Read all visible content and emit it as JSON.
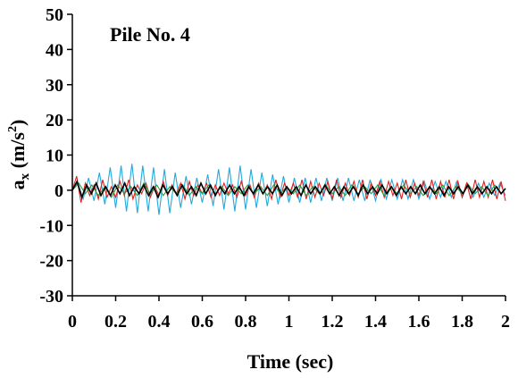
{
  "chart_data": {
    "type": "line",
    "annotation": "Pile No. 4",
    "xlabel": "Time (sec)",
    "ylabel_main": "a",
    "ylabel_sub": "x",
    "ylabel_unit_pre": " (m/s",
    "ylabel_unit_sup": "2",
    "ylabel_unit_post": ")",
    "xlim": [
      0,
      2
    ],
    "ylim": [
      -30,
      50
    ],
    "x_ticks": [
      "0",
      "0.2",
      "0.4",
      "0.6",
      "0.8",
      "1",
      "1.2",
      "1.4",
      "1.6",
      "1.8",
      "2"
    ],
    "y_ticks": [
      "50",
      "40",
      "30",
      "20",
      "10",
      "0",
      "-10",
      "-20",
      "-30"
    ],
    "grid": false,
    "legend": "none",
    "series": [
      {
        "color": "#22aadd",
        "x": [
          0.0,
          0.025,
          0.05,
          0.075,
          0.1,
          0.125,
          0.15,
          0.175,
          0.2,
          0.225,
          0.25,
          0.275,
          0.3,
          0.325,
          0.35,
          0.375,
          0.4,
          0.425,
          0.45,
          0.475,
          0.5,
          0.525,
          0.55,
          0.575,
          0.6,
          0.625,
          0.65,
          0.675,
          0.7,
          0.725,
          0.75,
          0.775,
          0.8,
          0.825,
          0.85,
          0.875,
          0.9,
          0.925,
          0.95,
          0.975,
          1.0,
          1.025,
          1.05,
          1.075,
          1.1,
          1.125,
          1.15,
          1.175,
          1.2,
          1.225,
          1.25,
          1.275,
          1.3,
          1.325,
          1.35,
          1.375,
          1.4,
          1.425,
          1.45,
          1.475,
          1.5,
          1.525,
          1.55,
          1.575,
          1.6,
          1.625,
          1.65,
          1.675,
          1.7,
          1.725,
          1.75,
          1.775,
          1.8,
          1.825,
          1.85,
          1.875,
          1.9,
          1.925,
          1.95,
          1.975,
          2.0
        ],
        "y": [
          0.5,
          2.0,
          -2.5,
          3.5,
          -3.0,
          5.0,
          -4.0,
          6.5,
          -5.0,
          7.0,
          -6.0,
          7.5,
          -6.5,
          7.0,
          -6.0,
          6.5,
          -7.0,
          6.0,
          -6.5,
          5.0,
          -5.0,
          4.0,
          -4.0,
          3.5,
          -3.5,
          4.5,
          -4.5,
          6.0,
          -5.5,
          6.5,
          -6.0,
          7.0,
          -5.5,
          6.0,
          -5.0,
          5.0,
          -4.5,
          4.5,
          -4.0,
          4.0,
          -3.5,
          3.5,
          -3.5,
          3.5,
          -3.5,
          3.5,
          -3.0,
          3.5,
          -3.0,
          3.5,
          -3.0,
          3.5,
          -3.0,
          3.0,
          -3.0,
          3.0,
          -3.0,
          3.0,
          -2.5,
          3.0,
          -2.5,
          3.0,
          -2.5,
          3.0,
          -2.5,
          2.5,
          -2.5,
          2.5,
          -2.0,
          2.5,
          -2.0,
          2.5,
          -2.0,
          2.0,
          -2.0,
          2.0,
          -2.0,
          2.0,
          -1.5,
          2.0,
          -1.5
        ]
      },
      {
        "color": "#e02020",
        "x": [
          0.0,
          0.02,
          0.04,
          0.06,
          0.08,
          0.1,
          0.12,
          0.14,
          0.16,
          0.18,
          0.2,
          0.22,
          0.24,
          0.26,
          0.28,
          0.3,
          0.32,
          0.34,
          0.36,
          0.38,
          0.4,
          0.42,
          0.44,
          0.46,
          0.48,
          0.5,
          0.52,
          0.54,
          0.56,
          0.58,
          0.6,
          0.62,
          0.64,
          0.66,
          0.68,
          0.7,
          0.72,
          0.74,
          0.76,
          0.78,
          0.8,
          0.82,
          0.84,
          0.86,
          0.88,
          0.9,
          0.92,
          0.94,
          0.96,
          0.98,
          1.0,
          1.02,
          1.04,
          1.06,
          1.08,
          1.1,
          1.12,
          1.14,
          1.16,
          1.18,
          1.2,
          1.22,
          1.24,
          1.26,
          1.28,
          1.3,
          1.32,
          1.34,
          1.36,
          1.38,
          1.4,
          1.42,
          1.44,
          1.46,
          1.48,
          1.5,
          1.52,
          1.54,
          1.56,
          1.58,
          1.6,
          1.62,
          1.64,
          1.66,
          1.68,
          1.7,
          1.72,
          1.74,
          1.76,
          1.78,
          1.8,
          1.82,
          1.84,
          1.86,
          1.88,
          1.9,
          1.92,
          1.94,
          1.96,
          1.98,
          2.0
        ],
        "y": [
          0.0,
          4.0,
          -3.5,
          2.0,
          -1.5,
          1.5,
          -2.5,
          3.0,
          -2.0,
          1.0,
          -2.0,
          2.5,
          -1.5,
          3.0,
          -2.5,
          1.5,
          -1.0,
          2.0,
          -2.0,
          1.0,
          -1.5,
          2.5,
          -1.5,
          1.5,
          -1.0,
          2.0,
          -2.5,
          2.5,
          -1.5,
          1.5,
          -1.0,
          2.0,
          -2.0,
          1.5,
          -1.5,
          2.0,
          -1.0,
          1.5,
          -2.0,
          2.5,
          -1.5,
          1.5,
          -2.0,
          2.0,
          -1.0,
          1.5,
          -2.5,
          3.0,
          -2.0,
          2.0,
          -1.5,
          2.0,
          -2.0,
          3.0,
          -2.5,
          2.5,
          -2.0,
          2.0,
          -1.5,
          2.5,
          -2.5,
          3.0,
          -2.0,
          2.0,
          -1.5,
          2.5,
          -2.0,
          3.0,
          -2.5,
          2.0,
          -1.5,
          2.5,
          -2.0,
          2.5,
          -1.5,
          2.0,
          -2.5,
          3.0,
          -2.0,
          2.0,
          -1.5,
          2.5,
          -2.0,
          3.0,
          -2.5,
          2.5,
          -2.0,
          3.0,
          -2.5,
          2.5,
          -2.0,
          2.0,
          -2.5,
          3.0,
          -2.0,
          2.5,
          -2.0,
          3.0,
          -2.5,
          2.5,
          -3.0
        ]
      },
      {
        "color": "#20a040",
        "x": [
          0.0,
          0.03,
          0.06,
          0.09,
          0.12,
          0.15,
          0.18,
          0.21,
          0.24,
          0.27,
          0.3,
          0.33,
          0.36,
          0.39,
          0.42,
          0.45,
          0.48,
          0.51,
          0.54,
          0.57,
          0.6,
          0.63,
          0.66,
          0.69,
          0.72,
          0.75,
          0.78,
          0.81,
          0.84,
          0.87,
          0.9,
          0.93,
          0.96,
          0.99,
          1.02,
          1.05,
          1.08,
          1.11,
          1.14,
          1.17,
          1.2,
          1.23,
          1.26,
          1.29,
          1.32,
          1.35,
          1.38,
          1.41,
          1.44,
          1.47,
          1.5,
          1.53,
          1.56,
          1.59,
          1.62,
          1.65,
          1.68,
          1.71,
          1.74,
          1.77,
          1.8,
          1.83,
          1.86,
          1.89,
          1.92,
          1.95,
          1.98,
          2.0
        ],
        "y": [
          0.0,
          2.0,
          -1.0,
          1.5,
          -1.5,
          1.0,
          -2.0,
          1.5,
          -1.0,
          1.0,
          -1.5,
          2.0,
          -1.0,
          1.5,
          -1.5,
          1.0,
          -1.0,
          1.5,
          -1.5,
          1.0,
          -1.0,
          1.5,
          -1.0,
          1.0,
          -1.5,
          1.0,
          -1.0,
          1.5,
          -1.0,
          1.0,
          -1.5,
          1.5,
          -1.0,
          1.0,
          -1.0,
          1.5,
          -1.5,
          1.0,
          -1.0,
          1.5,
          -1.0,
          1.0,
          -1.5,
          1.5,
          -1.0,
          1.0,
          -1.0,
          1.5,
          -1.5,
          1.0,
          -1.0,
          1.5,
          -1.0,
          1.0,
          -1.5,
          1.0,
          -1.0,
          1.5,
          -1.5,
          1.0,
          -1.0,
          1.5,
          -1.0,
          1.0,
          -1.5,
          1.5,
          -1.0,
          0.5
        ]
      },
      {
        "color": "#000000",
        "x": [
          0.0,
          0.022,
          0.044,
          0.066,
          0.088,
          0.11,
          0.132,
          0.154,
          0.176,
          0.198,
          0.22,
          0.242,
          0.264,
          0.286,
          0.308,
          0.33,
          0.352,
          0.374,
          0.396,
          0.418,
          0.44,
          0.462,
          0.484,
          0.506,
          0.528,
          0.55,
          0.572,
          0.594,
          0.616,
          0.638,
          0.66,
          0.682,
          0.704,
          0.726,
          0.748,
          0.77,
          0.792,
          0.814,
          0.836,
          0.858,
          0.88,
          0.902,
          0.924,
          0.946,
          0.968,
          0.99,
          1.012,
          1.034,
          1.056,
          1.078,
          1.1,
          1.122,
          1.144,
          1.166,
          1.188,
          1.21,
          1.232,
          1.254,
          1.276,
          1.298,
          1.32,
          1.342,
          1.364,
          1.386,
          1.408,
          1.43,
          1.452,
          1.474,
          1.496,
          1.518,
          1.54,
          1.562,
          1.584,
          1.606,
          1.628,
          1.65,
          1.672,
          1.694,
          1.716,
          1.738,
          1.76,
          1.782,
          1.804,
          1.826,
          1.848,
          1.87,
          1.892,
          1.914,
          1.936,
          1.958,
          1.98,
          2.0
        ],
        "y": [
          0.0,
          2.5,
          -2.0,
          1.5,
          -1.0,
          2.0,
          -1.5,
          1.0,
          -1.5,
          1.5,
          -1.0,
          2.0,
          -1.5,
          1.0,
          -1.0,
          1.5,
          -1.5,
          1.0,
          -2.0,
          1.5,
          -1.0,
          1.0,
          -1.5,
          1.5,
          -1.0,
          1.0,
          -1.5,
          2.0,
          -1.0,
          1.5,
          -1.5,
          1.0,
          -1.0,
          1.5,
          -1.0,
          1.0,
          -1.5,
          1.0,
          -1.0,
          1.5,
          -1.0,
          1.0,
          -1.0,
          1.5,
          -1.5,
          1.0,
          -1.0,
          1.0,
          -1.5,
          1.5,
          -1.0,
          1.0,
          -1.0,
          1.5,
          -1.0,
          1.0,
          -1.5,
          1.0,
          -1.0,
          1.0,
          -1.5,
          1.5,
          -1.0,
          1.0,
          -1.0,
          1.5,
          -1.0,
          1.0,
          -1.5,
          1.0,
          -1.0,
          1.0,
          -1.0,
          1.5,
          -1.0,
          1.0,
          -1.0,
          1.0,
          -1.5,
          1.0,
          -1.0,
          1.0,
          -1.0,
          1.5,
          -1.0,
          1.0,
          -1.0,
          1.0,
          -1.0,
          1.0,
          -1.0,
          0.5
        ]
      }
    ]
  }
}
